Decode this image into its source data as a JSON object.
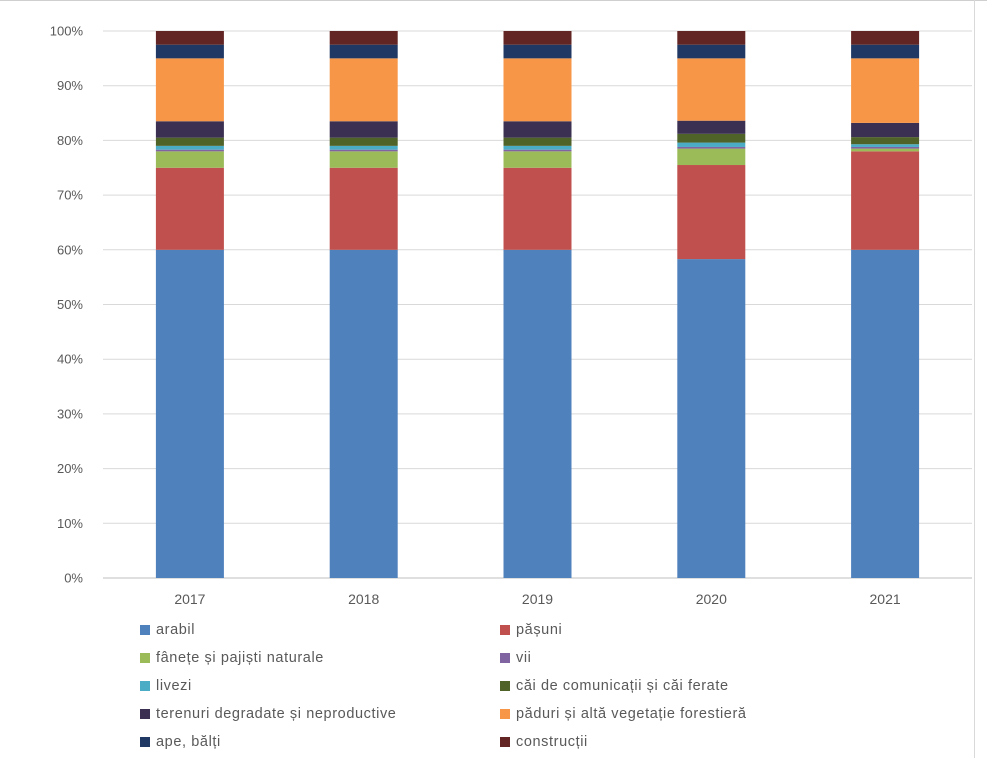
{
  "chart_data": {
    "type": "bar",
    "stacked": "percent",
    "categories": [
      "2017",
      "2018",
      "2019",
      "2020",
      "2021"
    ],
    "ylim": [
      0,
      100
    ],
    "yticks": [
      0,
      10,
      20,
      30,
      40,
      50,
      60,
      70,
      80,
      90,
      100
    ],
    "ytick_labels": [
      "0%",
      "10%",
      "20%",
      "30%",
      "40%",
      "50%",
      "60%",
      "70%",
      "80%",
      "90%",
      "100%"
    ],
    "grid": true,
    "legend_position": "bottom",
    "series": [
      {
        "name": "arabil",
        "color": "#4F81BD",
        "values": [
          60.0,
          60.0,
          60.0,
          58.3,
          60.0
        ]
      },
      {
        "name": "pășuni",
        "color": "#C0504D",
        "values": [
          15.0,
          15.0,
          15.0,
          17.2,
          18.0
        ]
      },
      {
        "name": "fânețe și pajiști naturale",
        "color": "#9BBB59",
        "values": [
          3.0,
          3.0,
          3.0,
          3.0,
          0.5
        ]
      },
      {
        "name": "vii",
        "color": "#8064A2",
        "values": [
          0.3,
          0.3,
          0.3,
          0.3,
          0.3
        ]
      },
      {
        "name": "livezi",
        "color": "#4BACC6",
        "values": [
          0.7,
          0.7,
          0.7,
          0.8,
          0.5
        ]
      },
      {
        "name": "căi de comunicații și căi ferate",
        "color": "#4F6228",
        "values": [
          1.5,
          1.5,
          1.5,
          1.6,
          1.3
        ]
      },
      {
        "name": "terenuri degradate și neproductive",
        "color": "#3B3052",
        "values": [
          3.0,
          3.0,
          3.0,
          2.4,
          2.6
        ]
      },
      {
        "name": "păduri și altă vegetație forestieră",
        "color": "#F79646",
        "values": [
          11.5,
          11.5,
          11.5,
          11.4,
          11.8
        ]
      },
      {
        "name": "ape, bălți",
        "color": "#1F3864",
        "values": [
          2.5,
          2.5,
          2.5,
          2.5,
          2.5
        ]
      },
      {
        "name": "construcții",
        "color": "#632523",
        "values": [
          2.5,
          2.5,
          2.5,
          2.5,
          2.5
        ]
      }
    ]
  },
  "legend": {
    "items": [
      {
        "label": "arabil",
        "color": "#4F81BD"
      },
      {
        "label": "pășuni",
        "color": "#C0504D"
      },
      {
        "label": "fânețe și pajiști naturale",
        "color": "#9BBB59"
      },
      {
        "label": "vii",
        "color": "#8064A2"
      },
      {
        "label": "livezi",
        "color": "#4BACC6"
      },
      {
        "label": "căi de comunicații și căi ferate",
        "color": "#4F6228"
      },
      {
        "label": "terenuri degradate și neproductive",
        "color": "#3B3052"
      },
      {
        "label": "păduri și altă vegetație forestieră",
        "color": "#F79646"
      },
      {
        "label": "ape, bălți",
        "color": "#1F3864"
      },
      {
        "label": "construcții",
        "color": "#632523"
      }
    ]
  }
}
